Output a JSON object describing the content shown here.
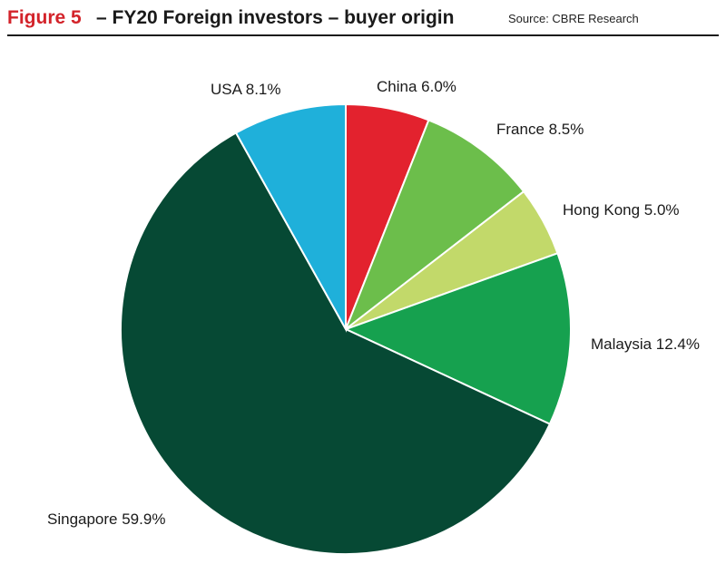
{
  "header": {
    "figure_label": "Figure 5",
    "title": "– FY20 Foreign investors – buyer origin",
    "source": "Source: CBRE Research"
  },
  "colors": {
    "accent": "#d3232a",
    "china": "#e3222e",
    "france": "#6cbe4b",
    "hong_kong": "#c2d96a",
    "malaysia": "#16a14f",
    "singapore": "#064934",
    "usa": "#1fb0da"
  },
  "chart_data": {
    "type": "pie",
    "slices": [
      {
        "name": "China",
        "value": 6.0,
        "label": "China 6.0%",
        "color": "#e3222e"
      },
      {
        "name": "France",
        "value": 8.5,
        "label": "France 8.5%",
        "color": "#6cbe4b"
      },
      {
        "name": "Hong Kong",
        "value": 5.0,
        "label": "Hong Kong 5.0%",
        "color": "#c2d96a"
      },
      {
        "name": "Malaysia",
        "value": 12.4,
        "label": "Malaysia 12.4%",
        "color": "#16a14f"
      },
      {
        "name": "Singapore",
        "value": 59.9,
        "label": "Singapore 59.9%",
        "color": "#064934"
      },
      {
        "name": "USA",
        "value": 8.1,
        "label": "USA 8.1%",
        "color": "#1fb0da"
      }
    ],
    "start_angle": "12 o'clock",
    "direction": "clockwise",
    "unit": "%"
  }
}
